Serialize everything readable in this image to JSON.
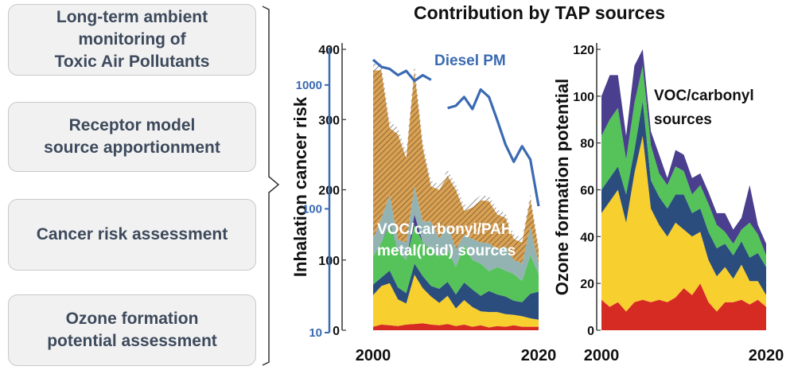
{
  "steps": [
    "Long-term ambient\nmonitoring of\nToxic Air Pollutants",
    "Receptor model\nsource apportionment",
    "Cancer risk assessment",
    "Ozone formation\npotential assessment"
  ],
  "colors": {
    "red": "#d62b23",
    "yellow": "#f7cf2f",
    "navy": "#2b4d7e",
    "green": "#55c35a",
    "purple": "#4a3f8e",
    "teal": "#93b3b3",
    "orange": "#d8a153",
    "gray": "#a7a7a7",
    "diesel": "#3a6ab2",
    "box_text": "#3d4a5c"
  },
  "chart_data": [
    {
      "type": "area",
      "title": "Contribution by TAP sources",
      "ylabel": "Inhalation cancer risk",
      "ylim": [
        0,
        400
      ],
      "yticks": [
        0,
        100,
        200,
        300,
        400
      ],
      "xlim": [
        2000,
        2020
      ],
      "xticks": [
        2000,
        2020
      ],
      "stacked": true,
      "x": [
        2000,
        2001,
        2002,
        2003,
        2004,
        2005,
        2006,
        2007,
        2008,
        2009,
        2010,
        2011,
        2012,
        2013,
        2014,
        2015,
        2016,
        2017,
        2018,
        2019,
        2020
      ],
      "series": [
        {
          "color_key": "red",
          "values": [
            5,
            8,
            7,
            6,
            8,
            9,
            10,
            8,
            7,
            9,
            6,
            8,
            5,
            7,
            4,
            6,
            5,
            7,
            5,
            5,
            5
          ]
        },
        {
          "color_key": "yellow",
          "values": [
            45,
            55,
            60,
            38,
            30,
            70,
            50,
            40,
            32,
            40,
            25,
            35,
            28,
            20,
            22,
            20,
            18,
            15,
            15,
            12,
            10
          ]
        },
        {
          "color_key": "navy",
          "values": [
            15,
            12,
            18,
            17,
            15,
            16,
            17,
            15,
            20,
            20,
            20,
            25,
            25,
            22,
            30,
            25,
            25,
            20,
            20,
            35,
            40
          ]
        },
        {
          "color_key": "green",
          "values": [
            40,
            50,
            65,
            53,
            47,
            55,
            48,
            52,
            46,
            46,
            39,
            53,
            42,
            46,
            28,
            39,
            37,
            38,
            30,
            55,
            25
          ]
        },
        {
          "color_key": "purple",
          "values": [
            0,
            0,
            3,
            0,
            0,
            15,
            0,
            0,
            0,
            0,
            0,
            0,
            0,
            0,
            0,
            0,
            0,
            0,
            0,
            0,
            0
          ]
        },
        {
          "color_key": "teal",
          "values": [
            25,
            35,
            40,
            15,
            25,
            40,
            30,
            40,
            25,
            35,
            25,
            15,
            30,
            30,
            40,
            25,
            35,
            20,
            25,
            40,
            15
          ]
        },
        {
          "color_key": "orange",
          "values": [
            240,
            210,
            95,
            150,
            120,
            165,
            105,
            50,
            70,
            70,
            85,
            34,
            45,
            60,
            60,
            50,
            40,
            30,
            30,
            40,
            20
          ]
        },
        {
          "color_key": "gray",
          "values": [
            10,
            9,
            10,
            9,
            9,
            10,
            9,
            8,
            8,
            8,
            8,
            8,
            8,
            7,
            7,
            7,
            7,
            7,
            7,
            7,
            6
          ]
        }
      ],
      "series_labels": [
        "VOC/carbonyl/PAH/\nmetal(loid) sources"
      ],
      "secondary_axis": {
        "scale": "log",
        "ticks": [
          10,
          100,
          1000
        ],
        "series": {
          "name": "Diesel PM",
          "segments": [
            {
              "x": [
                2000,
                2001,
                2002,
                2003,
                2004,
                2005,
                2006,
                2007
              ],
              "values": [
                1600,
                1400,
                1350,
                1200,
                1300,
                1080,
                1200,
                1100
              ]
            },
            {
              "x": [
                2009,
                2010,
                2011,
                2012,
                2013,
                2014,
                2015,
                2016,
                2017,
                2018,
                2019,
                2020
              ],
              "values": [
                650,
                680,
                800,
                640,
                920,
                800,
                520,
                330,
                240,
                320,
                250,
                105
              ]
            }
          ]
        }
      }
    },
    {
      "type": "area",
      "ylabel": "Ozone formation potential",
      "ylim": [
        0,
        120
      ],
      "yticks": [
        0,
        20,
        40,
        60,
        80,
        100,
        120
      ],
      "xlim": [
        2000,
        2020
      ],
      "xticks": [
        2000,
        2020
      ],
      "stacked": true,
      "x": [
        2000,
        2001,
        2002,
        2003,
        2004,
        2005,
        2006,
        2007,
        2008,
        2009,
        2010,
        2011,
        2012,
        2013,
        2014,
        2015,
        2016,
        2017,
        2018,
        2019,
        2020
      ],
      "series": [
        {
          "color_key": "red",
          "values": [
            13,
            10,
            12,
            8,
            12,
            13,
            12,
            13,
            12,
            14,
            18,
            15,
            20,
            12,
            8,
            12,
            12,
            13,
            11,
            13,
            10
          ]
        },
        {
          "color_key": "yellow",
          "values": [
            37,
            45,
            48,
            38,
            55,
            70,
            40,
            32,
            28,
            32,
            25,
            25,
            22,
            18,
            15,
            15,
            10,
            15,
            10,
            8,
            5
          ]
        },
        {
          "color_key": "navy",
          "values": [
            10,
            10,
            10,
            12,
            10,
            15,
            12,
            12,
            12,
            12,
            15,
            10,
            10,
            12,
            12,
            10,
            10,
            10,
            10,
            12,
            12
          ]
        },
        {
          "color_key": "green",
          "values": [
            23,
            25,
            25,
            15,
            20,
            15,
            15,
            10,
            10,
            12,
            10,
            8,
            10,
            12,
            10,
            5,
            5,
            5,
            15,
            8,
            5
          ]
        },
        {
          "color_key": "purple",
          "values": [
            17,
            19,
            14,
            10,
            16,
            7,
            6,
            8,
            3,
            7,
            7,
            7,
            5,
            5,
            5,
            8,
            6,
            5,
            16,
            4,
            5
          ]
        }
      ],
      "series_labels": [
        "VOC/carbonyl\nsources"
      ]
    }
  ]
}
